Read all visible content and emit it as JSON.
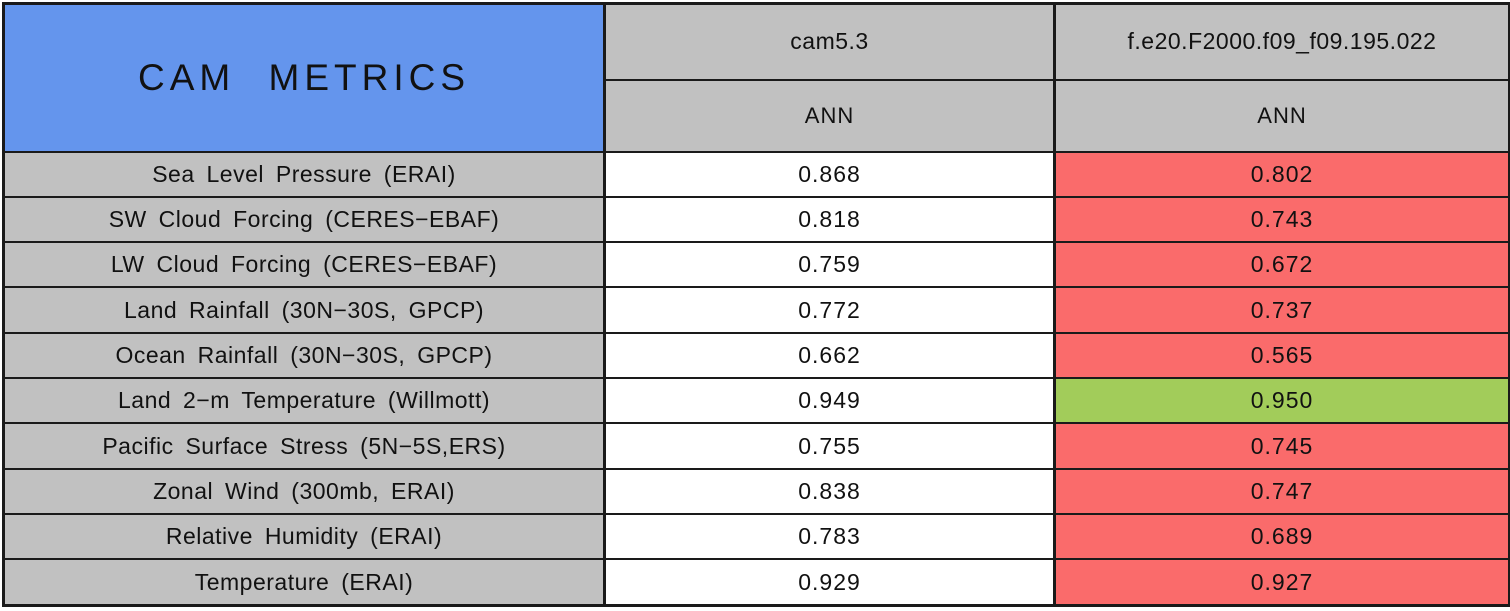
{
  "colors": {
    "header_blue": "#6495ED",
    "label_gray": "#C1C1C1",
    "worse_red": "#FA6B6B",
    "better_green": "#A2CC5A",
    "border_black": "#1A1A1A"
  },
  "table": {
    "title": "CAM METRICS",
    "columns": [
      {
        "model": "cam5.3",
        "season": "ANN"
      },
      {
        "model": "f.e20.F2000.f09_f09.195.022",
        "season": "ANN"
      }
    ],
    "rows": [
      {
        "metric": "Sea Level Pressure (ERAI)",
        "cam53": "0.868",
        "test": "0.802",
        "status": "worse"
      },
      {
        "metric": "SW Cloud Forcing (CERES−EBAF)",
        "cam53": "0.818",
        "test": "0.743",
        "status": "worse"
      },
      {
        "metric": "LW Cloud Forcing (CERES−EBAF)",
        "cam53": "0.759",
        "test": "0.672",
        "status": "worse"
      },
      {
        "metric": "Land Rainfall (30N−30S, GPCP)",
        "cam53": "0.772",
        "test": "0.737",
        "status": "worse"
      },
      {
        "metric": "Ocean Rainfall (30N−30S, GPCP)",
        "cam53": "0.662",
        "test": "0.565",
        "status": "worse"
      },
      {
        "metric": "Land 2−m Temperature (Willmott)",
        "cam53": "0.949",
        "test": "0.950",
        "status": "better"
      },
      {
        "metric": "Pacific Surface Stress (5N−5S,ERS)",
        "cam53": "0.755",
        "test": "0.745",
        "status": "worse"
      },
      {
        "metric": "Zonal Wind (300mb, ERAI)",
        "cam53": "0.838",
        "test": "0.747",
        "status": "worse"
      },
      {
        "metric": "Relative Humidity (ERAI)",
        "cam53": "0.783",
        "test": "0.689",
        "status": "worse"
      },
      {
        "metric": "Temperature (ERAI)",
        "cam53": "0.929",
        "test": "0.927",
        "status": "worse"
      }
    ]
  },
  "chart_data": {
    "type": "table",
    "title": "CAM METRICS",
    "columns": [
      "CAM METRICS",
      "cam5.3 (ANN)",
      "f.e20.F2000.f09_f09.195.022 (ANN)"
    ],
    "categories": [
      "Sea Level Pressure (ERAI)",
      "SW Cloud Forcing (CERES−EBAF)",
      "LW Cloud Forcing (CERES−EBAF)",
      "Land Rainfall (30N−30S, GPCP)",
      "Ocean Rainfall (30N−30S, GPCP)",
      "Land 2−m Temperature (Willmott)",
      "Pacific Surface Stress (5N−5S,ERS)",
      "Zonal Wind (300mb, ERAI)",
      "Relative Humidity (ERAI)",
      "Temperature (ERAI)"
    ],
    "series": [
      {
        "name": "cam5.3 (ANN)",
        "values": [
          0.868,
          0.818,
          0.759,
          0.772,
          0.662,
          0.949,
          0.755,
          0.838,
          0.783,
          0.929
        ]
      },
      {
        "name": "f.e20.F2000.f09_f09.195.022 (ANN)",
        "values": [
          0.802,
          0.743,
          0.672,
          0.737,
          0.565,
          0.95,
          0.745,
          0.747,
          0.689,
          0.927
        ]
      }
    ],
    "cell_highlighting": "test-run cells shaded red when score is worse than cam5.3, green when better"
  }
}
